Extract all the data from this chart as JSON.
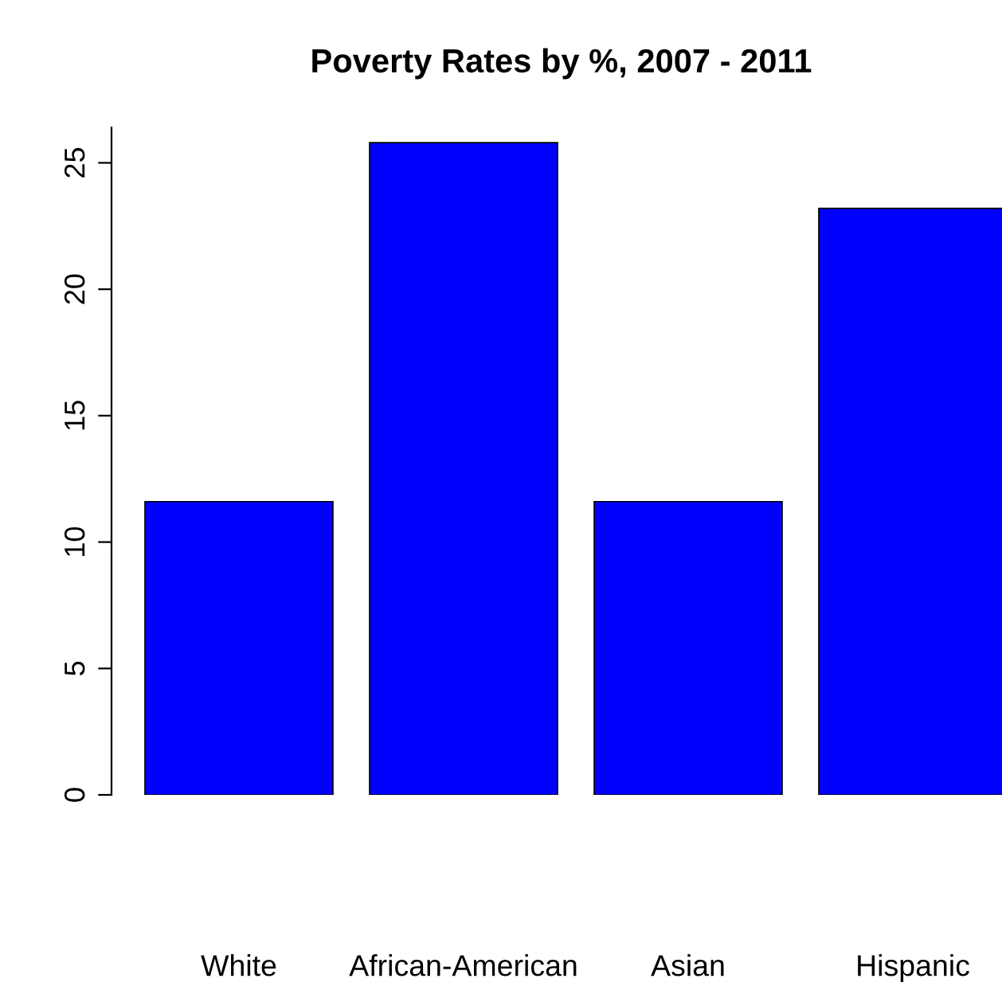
{
  "chart_data": {
    "type": "bar",
    "title": "Poverty Rates by %, 2007 - 2011",
    "categories": [
      "White",
      "African-American",
      "Asian",
      "Hispanic"
    ],
    "values": [
      11.6,
      25.8,
      11.6,
      23.2
    ],
    "color": "#0000ff",
    "ylim": [
      0,
      26.4
    ],
    "yticks": [
      0,
      5,
      10,
      15,
      20,
      25
    ],
    "grid": false,
    "legend": false
  }
}
